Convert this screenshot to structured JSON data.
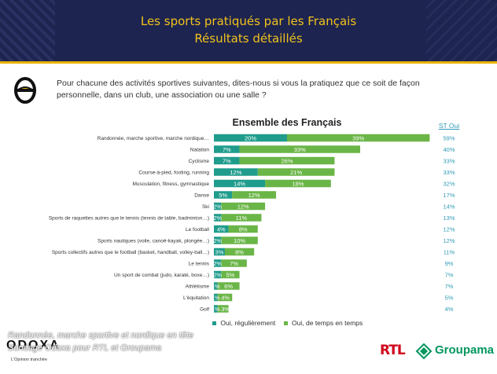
{
  "header": {
    "title_line1": "Les sports pratiqués par les Français",
    "title_line2": "Résultats détaillés"
  },
  "question": "Pour chacune des activités sportives suivantes, dites-nous si vous la pratiquez que ce soit de façon personnelle, dans un club, une association ou une salle ?",
  "colors": {
    "header_bg": "#1d2450",
    "title_gold": "#f1c21b",
    "series_regular": "#1f9c8c",
    "series_sometimes": "#6ab547",
    "st_text": "#2e9bb5"
  },
  "chart_data": {
    "type": "bar",
    "orientation": "horizontal",
    "stacked": true,
    "title": "Ensemble des Français",
    "value_unit": "%",
    "categories": [
      "Randonnée, marche sportive, marche nordique…",
      "Natation",
      "Cyclisme",
      "Course-à-pied, footing, running",
      "Musculation, fitness, gymnastique",
      "Danse",
      "Ski",
      "Sports de raquettes autres que le tennis (tennis de table, badminton…)",
      "Le football",
      "Sports nautiques (voile, canoë-kayak, plongée…)",
      "Sports collectifs autres que le football (basket, handball, volley-ball…)",
      "Le tennis",
      "Un sport de combat (judo, karaté, boxe…)",
      "Athlétisme",
      "L'équitation",
      "Golf"
    ],
    "series": [
      {
        "name": "Oui, régulièrement",
        "values": [
          20,
          7,
          7,
          12,
          14,
          5,
          2,
          2,
          4,
          2,
          3,
          2,
          2,
          1,
          1,
          1
        ]
      },
      {
        "name": "Oui, de temps en temps",
        "values": [
          39,
          33,
          26,
          21,
          18,
          12,
          12,
          11,
          8,
          10,
          8,
          7,
          5,
          6,
          4,
          3
        ]
      }
    ],
    "st_label": "ST Oui",
    "st_values": [
      59,
      40,
      33,
      33,
      32,
      17,
      14,
      13,
      12,
      12,
      11,
      9,
      7,
      7,
      5,
      4
    ],
    "xlim": [
      0,
      60
    ]
  },
  "footer": {
    "caption_line1": "Randonnée, marche sportive et nordique en tête",
    "caption_line2": "Sondage Odoxa pour RTL et Groupama",
    "odoxa": "ODOXA",
    "odoxa_tagline": "L'Opinion tranchée",
    "rtl": "RTL",
    "groupama": "Groupama"
  }
}
